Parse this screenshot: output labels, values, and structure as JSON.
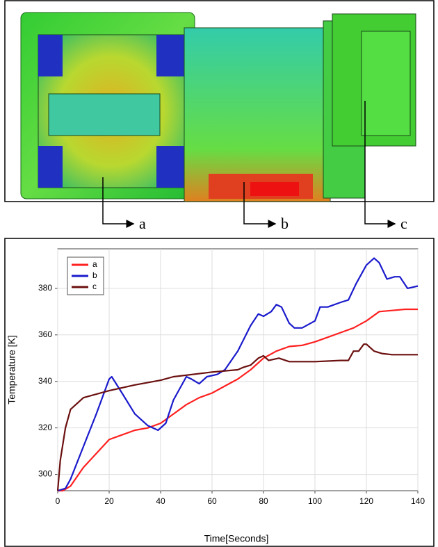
{
  "figure": {
    "labels": [
      "a",
      "b",
      "c"
    ]
  },
  "chart_data": {
    "type": "line",
    "xlabel": "Time[Seconds]",
    "ylabel": "Temperature [K]",
    "xlim": [
      0,
      140
    ],
    "xticks": [
      0,
      20,
      40,
      60,
      80,
      100,
      120,
      140
    ],
    "ylim": [
      293,
      397
    ],
    "yticks": [
      300,
      320,
      340,
      360,
      380
    ],
    "grid": true,
    "legend": "upper left",
    "series": [
      {
        "name": "a",
        "color": "#ff2020",
        "x": [
          0,
          2,
          5,
          10,
          15,
          20,
          25,
          30,
          35,
          40,
          45,
          50,
          55,
          60,
          65,
          70,
          75,
          80,
          85,
          90,
          95,
          100,
          105,
          110,
          115,
          120,
          125,
          130,
          135,
          140
        ],
        "values": [
          293,
          293,
          295,
          303,
          309,
          315,
          317,
          319,
          320,
          322,
          326,
          330,
          333,
          335,
          338,
          341,
          345,
          350,
          353,
          355,
          355.5,
          357,
          359,
          361,
          363,
          366,
          370,
          370.5,
          371,
          371
        ]
      },
      {
        "name": "b",
        "color": "#1a1acc",
        "x": [
          0,
          3,
          5,
          10,
          15,
          20,
          21,
          25,
          30,
          35,
          39,
          42,
          45,
          50,
          52,
          55,
          58,
          62,
          65,
          70,
          75,
          78,
          80,
          83,
          85,
          87,
          90,
          92,
          95,
          100,
          102,
          105,
          110,
          113,
          116,
          120,
          123,
          125,
          128,
          131,
          133,
          136,
          140
        ],
        "values": [
          293,
          294,
          298,
          312,
          326,
          341,
          342,
          335,
          326,
          321,
          319,
          322,
          332,
          342,
          341,
          339,
          342,
          343,
          345,
          353,
          364,
          369,
          368,
          370,
          373,
          372,
          365,
          363,
          363,
          366,
          372,
          372,
          374,
          375,
          382,
          390,
          393,
          391,
          384,
          385,
          385,
          380,
          381
        ]
      },
      {
        "name": "c",
        "color": "#6b0f0f",
        "x": [
          0,
          1,
          3,
          5,
          10,
          20,
          30,
          40,
          45,
          60,
          70,
          72,
          75,
          78,
          80,
          82,
          86,
          90,
          100,
          110,
          113,
          115,
          117,
          119,
          120,
          123,
          126,
          130,
          140
        ],
        "values": [
          293,
          306,
          320,
          328,
          333,
          336,
          338.5,
          340.5,
          342,
          344,
          345,
          346,
          347,
          350,
          351,
          349,
          350,
          348.5,
          348.5,
          349,
          349,
          353,
          353,
          356,
          356,
          353,
          352,
          351.5,
          351.5
        ]
      }
    ]
  }
}
